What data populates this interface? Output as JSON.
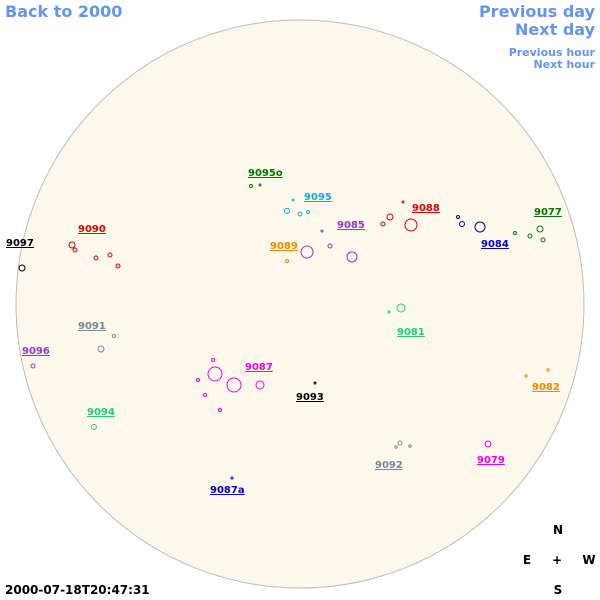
{
  "nav": {
    "back": "Back to 2000",
    "previous_day": "Previous day",
    "next_day": "Next day",
    "previous_hour": "Previous hour",
    "next_hour": "Next hour"
  },
  "regions": [
    {
      "label": "9097",
      "color": "#000000"
    },
    {
      "label": "9090",
      "color": "#dd0000"
    },
    {
      "label": "9095o",
      "color": "#007700"
    },
    {
      "label": "9095",
      "color": "#11aadd"
    },
    {
      "label": "9088",
      "color": "#dd0000"
    },
    {
      "label": "9085",
      "color": "#9933cc"
    },
    {
      "label": "9077",
      "color": "#007700"
    },
    {
      "label": "9089",
      "color": "#ee8800"
    },
    {
      "label": "9084",
      "color": "#0000cc"
    },
    {
      "label": "9091",
      "color": "#778899"
    },
    {
      "label": "9081",
      "color": "#22cc77"
    },
    {
      "label": "9096",
      "color": "#9933cc"
    },
    {
      "label": "9087",
      "color": "#ee00ee"
    },
    {
      "label": "9082",
      "color": "#ee8800"
    },
    {
      "label": "9093",
      "color": "#000000"
    },
    {
      "label": "9094",
      "color": "#22cc77"
    },
    {
      "label": "9092",
      "color": "#778899"
    },
    {
      "label": "9079",
      "color": "#ee00ee"
    },
    {
      "label": "9087a",
      "color": "#0000cc"
    }
  ],
  "compass": {
    "north": "N",
    "east": "E",
    "center": "+",
    "west": "W",
    "south": "S"
  },
  "timestamp": "2000-07-18T20:47:31"
}
